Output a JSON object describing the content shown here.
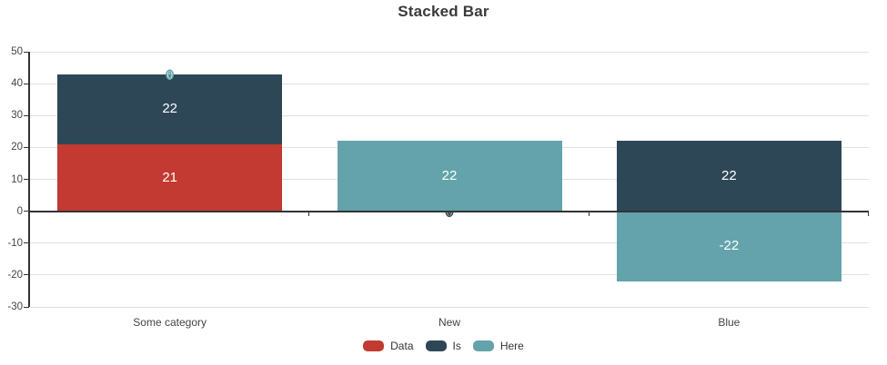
{
  "title": "Stacked Bar",
  "chart_data": {
    "type": "bar",
    "stacked": true,
    "title": "Stacked Bar",
    "categories": [
      "Some category",
      "New",
      "Blue"
    ],
    "series": [
      {
        "name": "Data",
        "color": "#c23a31",
        "values": [
          21,
          0,
          0
        ]
      },
      {
        "name": "Is",
        "color": "#2e4757",
        "values": [
          22,
          0,
          22
        ]
      },
      {
        "name": "Here",
        "color": "#64a3ab",
        "values": [
          0,
          22,
          -22
        ]
      }
    ],
    "data_labels": {
      "Some category": {
        "Data": "21",
        "Is": "22",
        "Here": "0"
      },
      "New": {
        "Data": "0",
        "Is": "0",
        "Here": "22"
      },
      "Blue": {
        "Data": "0",
        "Is": "22",
        "Here": "-22"
      }
    },
    "ylim": [
      -30,
      50
    ],
    "yticks": [
      50,
      40,
      30,
      20,
      10,
      0,
      -10,
      -20,
      -30
    ],
    "grid": true,
    "legend_position": "bottom",
    "colors": {
      "background": "#ffffff",
      "grid": "#e1e1e1",
      "axis": "#333333",
      "tick_text": "#444444",
      "title_text": "#3a3a3a",
      "bar_label_text": "#ffffff"
    }
  }
}
